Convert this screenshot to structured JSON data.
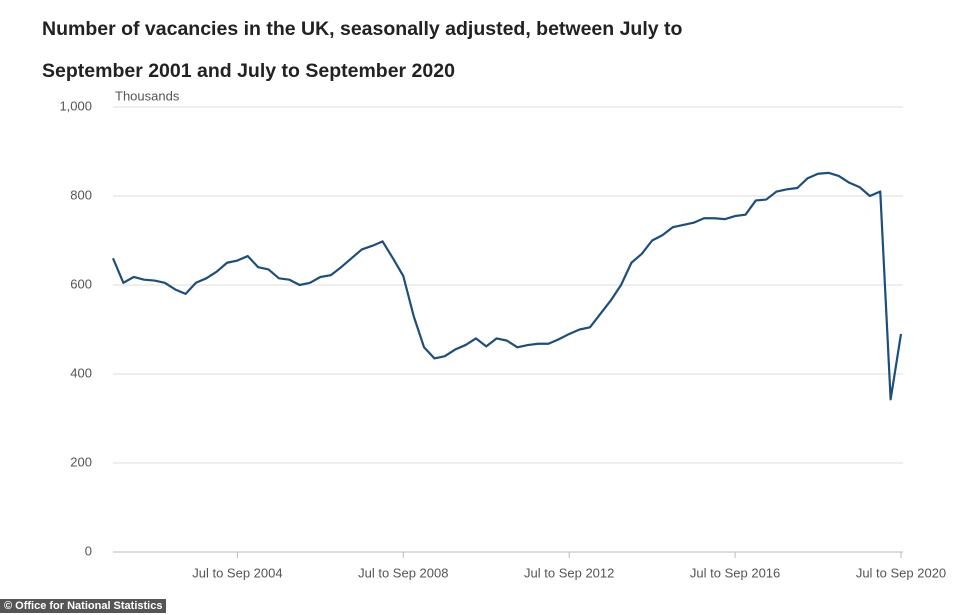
{
  "chart_data": {
    "type": "line",
    "title": "Number of vacancies in the UK, seasonally adjusted, between July to September 2001 and July to September 2020",
    "y_label": "Thousands",
    "source": "© Office for National Statistics",
    "categories": [
      null,
      null,
      null,
      null,
      null,
      null,
      null,
      null,
      null,
      null,
      null,
      null,
      "Jul to Sep 2004",
      null,
      null,
      null,
      null,
      null,
      null,
      null,
      null,
      null,
      null,
      null,
      null,
      null,
      null,
      null,
      "Jul to Sep 2008",
      null,
      null,
      null,
      null,
      null,
      null,
      null,
      null,
      null,
      null,
      null,
      null,
      null,
      null,
      null,
      "Jul to Sep 2012",
      null,
      null,
      null,
      null,
      null,
      null,
      null,
      null,
      null,
      null,
      null,
      null,
      null,
      null,
      null,
      "Jul to Sep 2016",
      null,
      null,
      null,
      null,
      null,
      null,
      null,
      null,
      null,
      null,
      null,
      null,
      null,
      null,
      null,
      "Jul to Sep 2020"
    ],
    "series": [
      {
        "name": "Vacancies",
        "color": "#1f4e79",
        "values": [
          660,
          605,
          618,
          612,
          610,
          605,
          590,
          580,
          605,
          615,
          630,
          650,
          655,
          665,
          640,
          635,
          615,
          612,
          600,
          605,
          618,
          622,
          640,
          660,
          680,
          688,
          698,
          660,
          620,
          530,
          460,
          435,
          440,
          455,
          465,
          480,
          462,
          480,
          475,
          460,
          465,
          468,
          468,
          478,
          490,
          500,
          505,
          535,
          565,
          600,
          650,
          670,
          700,
          712,
          730,
          735,
          740,
          750,
          750,
          748,
          755,
          758,
          790,
          792,
          810,
          815,
          818,
          840,
          850,
          852,
          845,
          830,
          820,
          800,
          810,
          343,
          490
        ]
      }
    ],
    "ylim": [
      0,
      1000
    ],
    "yticks": [
      0,
      200,
      400,
      600,
      800,
      {
        "value": 1000,
        "label": "1,000"
      }
    ],
    "grid": true
  }
}
